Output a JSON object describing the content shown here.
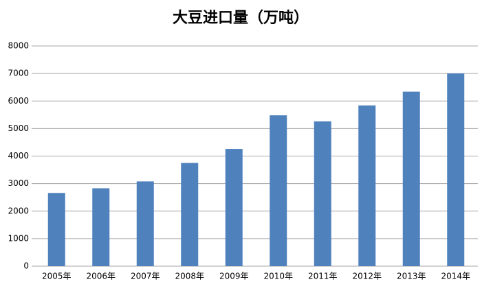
{
  "chart_data": {
    "type": "bar",
    "title": "大豆进口量（万吨）",
    "categories": [
      "2005年",
      "2006年",
      "2007年",
      "2008年",
      "2009年",
      "2010年",
      "2011年",
      "2012年",
      "2013年",
      "2014年"
    ],
    "values": [
      2660,
      2830,
      3080,
      3750,
      4260,
      5480,
      5260,
      5840,
      6340,
      7000
    ],
    "color": "#4f81bd",
    "ylim": [
      0,
      8000
    ],
    "yticks": [
      0,
      1000,
      2000,
      3000,
      4000,
      5000,
      6000,
      7000,
      8000
    ],
    "grid": true
  }
}
